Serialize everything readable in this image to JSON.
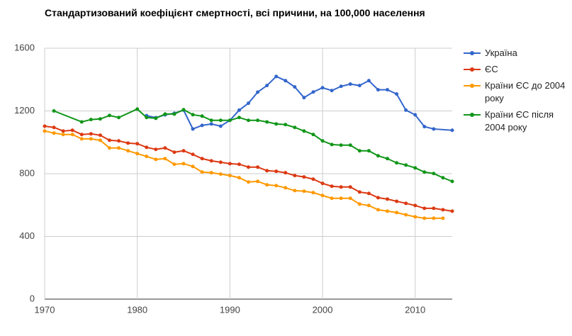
{
  "chart_data": {
    "type": "line",
    "title": "Стандартизований коефіцієнт смертності, всі причини, на 100,000 населення",
    "xlim": [
      1970,
      2014
    ],
    "xticks": [
      1970,
      1980,
      1990,
      2000,
      2010
    ],
    "ylim": [
      0,
      1600
    ],
    "yticks": [
      0,
      400,
      800,
      1200,
      1600
    ],
    "grid": true,
    "legend": "right",
    "series": [
      {
        "name": "Україна",
        "color": "#3366cc",
        "x": [
          1981,
          1982,
          1983,
          1984,
          1985,
          1986,
          1987,
          1988,
          1989,
          1990,
          1991,
          1992,
          1993,
          1994,
          1995,
          1996,
          1997,
          1998,
          1999,
          2000,
          2001,
          2002,
          2003,
          2004,
          2005,
          2006,
          2007,
          2008,
          2009,
          2010,
          2011,
          2012,
          2014
        ],
        "values": [
          1170,
          1157,
          1175,
          1185,
          1205,
          1085,
          1108,
          1117,
          1103,
          1140,
          1205,
          1249,
          1320,
          1362,
          1420,
          1393,
          1353,
          1285,
          1321,
          1348,
          1330,
          1357,
          1371,
          1362,
          1393,
          1335,
          1335,
          1308,
          1205,
          1175,
          1100,
          1085,
          1077
        ]
      },
      {
        "name": "ЄС",
        "color": "#dc3912",
        "x": [
          1970,
          1971,
          1972,
          1973,
          1974,
          1975,
          1976,
          1977,
          1978,
          1979,
          1980,
          1981,
          1982,
          1983,
          1984,
          1985,
          1986,
          1987,
          1988,
          1989,
          1990,
          1991,
          1992,
          1993,
          1994,
          1995,
          1996,
          1997,
          1998,
          1999,
          2000,
          2001,
          2002,
          2003,
          2004,
          2005,
          2006,
          2007,
          2008,
          2009,
          2010,
          2011,
          2012,
          2013,
          2014
        ],
        "values": [
          1103,
          1095,
          1072,
          1077,
          1050,
          1054,
          1045,
          1013,
          1009,
          995,
          991,
          968,
          955,
          964,
          937,
          946,
          923,
          896,
          882,
          873,
          864,
          860,
          842,
          842,
          819,
          815,
          806,
          788,
          779,
          765,
          738,
          720,
          715,
          715,
          683,
          674,
          647,
          638,
          624,
          611,
          597,
          579,
          579,
          570,
          561
        ]
      },
      {
        "name": "Країни ЄС до 2004 року",
        "color": "#ff9900",
        "x": [
          1970,
          1971,
          1972,
          1973,
          1974,
          1975,
          1976,
          1977,
          1978,
          1979,
          1980,
          1981,
          1982,
          1983,
          1984,
          1985,
          1986,
          1987,
          1988,
          1989,
          1990,
          1991,
          1992,
          1993,
          1994,
          1995,
          1996,
          1997,
          1998,
          1999,
          2000,
          2001,
          2002,
          2003,
          2004,
          2005,
          2006,
          2007,
          2008,
          2009,
          2010,
          2011,
          2012,
          2013
        ],
        "values": [
          1072,
          1059,
          1050,
          1050,
          1022,
          1022,
          1013,
          964,
          964,
          946,
          928,
          910,
          891,
          896,
          860,
          864,
          846,
          810,
          806,
          797,
          788,
          774,
          747,
          751,
          729,
          724,
          710,
          692,
          688,
          679,
          661,
          643,
          643,
          643,
          606,
          597,
          570,
          561,
          552,
          538,
          525,
          516,
          516,
          516
        ]
      },
      {
        "name": "Країни ЄС після 2004 року",
        "color": "#109618",
        "x": [
          1971,
          1974,
          1975,
          1976,
          1977,
          1978,
          1980,
          1981,
          1982,
          1983,
          1984,
          1985,
          1986,
          1987,
          1988,
          1989,
          1990,
          1991,
          1992,
          1993,
          1994,
          1995,
          1996,
          1997,
          1998,
          1999,
          2000,
          2001,
          2002,
          2003,
          2004,
          2005,
          2006,
          2007,
          2008,
          2009,
          2010,
          2011,
          2012,
          2013,
          2014
        ],
        "values": [
          1200,
          1130,
          1145,
          1149,
          1171,
          1158,
          1212,
          1158,
          1153,
          1180,
          1180,
          1208,
          1176,
          1167,
          1140,
          1140,
          1140,
          1158,
          1140,
          1140,
          1130,
          1117,
          1113,
          1095,
          1072,
          1050,
          1009,
          986,
          982,
          982,
          946,
          946,
          914,
          896,
          869,
          855,
          837,
          810,
          801,
          774,
          751
        ]
      }
    ]
  }
}
